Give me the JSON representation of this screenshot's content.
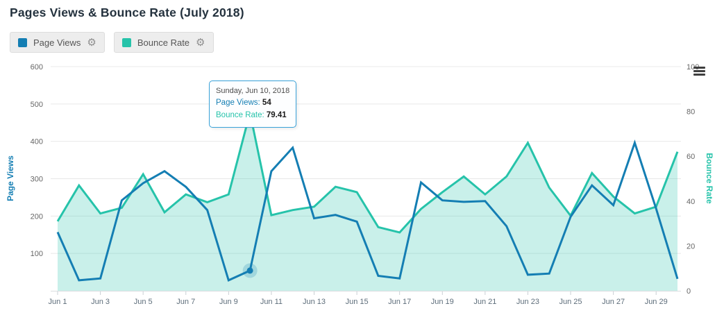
{
  "header": {
    "title": "Pages Views & Bounce Rate (July 2018)"
  },
  "legend": [
    {
      "label": "Page Views",
      "color": "#147eb3",
      "gear_glyph": "⚙"
    },
    {
      "label": "Bounce Rate",
      "color": "#26c3aa",
      "gear_glyph": "⚙"
    }
  ],
  "axes": {
    "left_title": "Page Views",
    "right_title": "Bounce Rate"
  },
  "tooltip": {
    "date": "Sunday, Jun 10, 2018",
    "page_views_label": "Page Views:",
    "page_views_value": "54",
    "bounce_rate_label": "Bounce Rate:",
    "bounce_rate_value": "79.41"
  },
  "colors": {
    "page_views": "#147eb3",
    "bounce_rate": "#26c3aa",
    "bounce_fill": "rgba(38,195,170,0.25)",
    "grid": "#e8e8e8",
    "axis_line": "#d9dde0",
    "tick": "#c9cfd4",
    "y_label": "#666666",
    "x_label": "#5d6d7a",
    "halo_blue": "rgba(20,126,179,0.22)",
    "halo_teal": "rgba(38,195,170,0.30)"
  },
  "chart_data": {
    "type": "line",
    "title": "Pages Views & Bounce Rate (July 2018)",
    "grid": "horizontal",
    "legend_position": "top-left",
    "categories": [
      "Jun 1",
      "Jun 2",
      "Jun 3",
      "Jun 4",
      "Jun 5",
      "Jun 6",
      "Jun 7",
      "Jun 8",
      "Jun 9",
      "Jun 10",
      "Jun 11",
      "Jun 12",
      "Jun 13",
      "Jun 14",
      "Jun 15",
      "Jun 16",
      "Jun 17",
      "Jun 18",
      "Jun 19",
      "Jun 20",
      "Jun 21",
      "Jun 22",
      "Jun 23",
      "Jun 24",
      "Jun 25",
      "Jun 26",
      "Jun 27",
      "Jun 28",
      "Jun 29",
      "Jun 30"
    ],
    "x_tick_labels": [
      "Jun 1",
      "Jun 3",
      "Jun 5",
      "Jun 7",
      "Jun 9",
      "Jun 11",
      "Jun 13",
      "Jun 15",
      "Jun 17",
      "Jun 19",
      "Jun 21",
      "Jun 23",
      "Jun 25",
      "Jun 27",
      "Jun 29"
    ],
    "series": [
      {
        "name": "Page Views",
        "type": "line",
        "y_axis": "left",
        "color": "#147eb3",
        "values": [
          157,
          28,
          33,
          242,
          288,
          320,
          278,
          216,
          28,
          54,
          320,
          383,
          194,
          203,
          185,
          40,
          33,
          290,
          242,
          238,
          240,
          173,
          43,
          46,
          198,
          282,
          229,
          396,
          220,
          32
        ]
      },
      {
        "name": "Bounce Rate",
        "type": "area",
        "y_axis": "right",
        "color": "#26c3aa",
        "fill_opacity": 0.25,
        "values": [
          31,
          47,
          34.5,
          37,
          52,
          35,
          43,
          39.5,
          43,
          79.41,
          33.7,
          36,
          37.5,
          46.4,
          44,
          28.4,
          26,
          36.5,
          44,
          51,
          43,
          51,
          66,
          46,
          33.5,
          52.5,
          42,
          34.5,
          37.5,
          62
        ]
      }
    ],
    "left_axis": {
      "title": "Page Views",
      "min": 0,
      "max": 600,
      "ticks": [
        100,
        200,
        300,
        400,
        500,
        600
      ]
    },
    "right_axis": {
      "title": "Bounce Rate",
      "min": 0,
      "max": 100,
      "ticks": [
        0,
        20,
        40,
        60,
        80,
        100
      ]
    },
    "highlighted_point": {
      "category": "Jun 10",
      "index": 9,
      "page_views": 54,
      "bounce_rate": 79.41
    }
  }
}
